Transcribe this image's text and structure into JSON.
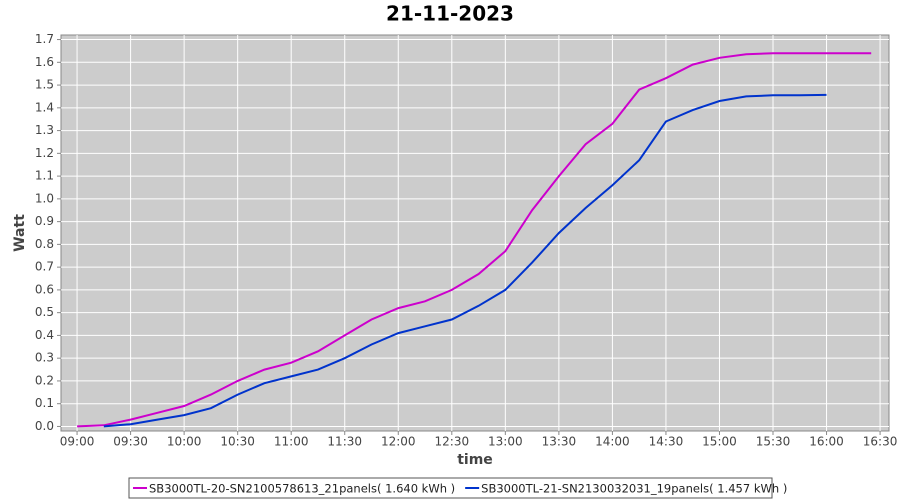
{
  "chart_data": {
    "type": "line",
    "title": "21-11-2023",
    "x_label": "time",
    "y_label": "Watt",
    "x": [
      "09:00",
      "09:15",
      "09:30",
      "09:45",
      "10:00",
      "10:15",
      "10:30",
      "10:45",
      "11:00",
      "11:15",
      "11:30",
      "11:45",
      "12:00",
      "12:15",
      "12:30",
      "12:45",
      "13:00",
      "13:15",
      "13:30",
      "13:45",
      "14:00",
      "14:15",
      "14:30",
      "14:45",
      "15:00",
      "15:15",
      "15:30",
      "15:45",
      "16:00",
      "16:15",
      "16:25"
    ],
    "series": [
      {
        "name": "SB3000TL-20-SN2100578613_21panels( 1.640 kWh )",
        "color": "#cc00cc",
        "values": [
          0.0,
          0.005,
          0.03,
          0.06,
          0.09,
          0.14,
          0.2,
          0.25,
          0.28,
          0.33,
          0.4,
          0.47,
          0.52,
          0.55,
          0.6,
          0.67,
          0.77,
          0.95,
          1.1,
          1.24,
          1.33,
          1.48,
          1.53,
          1.59,
          1.62,
          1.635,
          1.64,
          1.64,
          1.64,
          1.64,
          1.64
        ]
      },
      {
        "name": "SB3000TL-21-SN2130032031_19panels( 1.457 kWh )",
        "color": "#0033cc",
        "values": [
          null,
          0.0,
          0.01,
          0.03,
          0.05,
          0.08,
          0.14,
          0.19,
          0.22,
          0.25,
          0.3,
          0.36,
          0.41,
          0.44,
          0.47,
          0.53,
          0.6,
          0.72,
          0.85,
          0.96,
          1.06,
          1.17,
          1.34,
          1.39,
          1.43,
          1.45,
          1.455,
          1.455,
          1.457,
          null,
          null
        ]
      }
    ],
    "xlim": [
      "08:51",
      "16:35"
    ],
    "xticks": [
      "09:00",
      "09:30",
      "10:00",
      "10:30",
      "11:00",
      "11:30",
      "12:00",
      "12:30",
      "13:00",
      "13:30",
      "14:00",
      "14:30",
      "15:00",
      "15:30",
      "16:00",
      "16:30"
    ],
    "ylim": [
      -0.02,
      1.72
    ],
    "yticks": [
      {
        "value": 0,
        "label": "0.0"
      },
      0.1,
      0.2,
      0.3,
      0.4,
      0.5,
      0.6,
      0.7,
      0.8,
      0.9,
      {
        "value": 1,
        "label": "1.0"
      },
      1.1,
      1.2,
      1.3,
      1.4,
      1.5,
      1.6,
      1.7
    ],
    "grid": true
  }
}
